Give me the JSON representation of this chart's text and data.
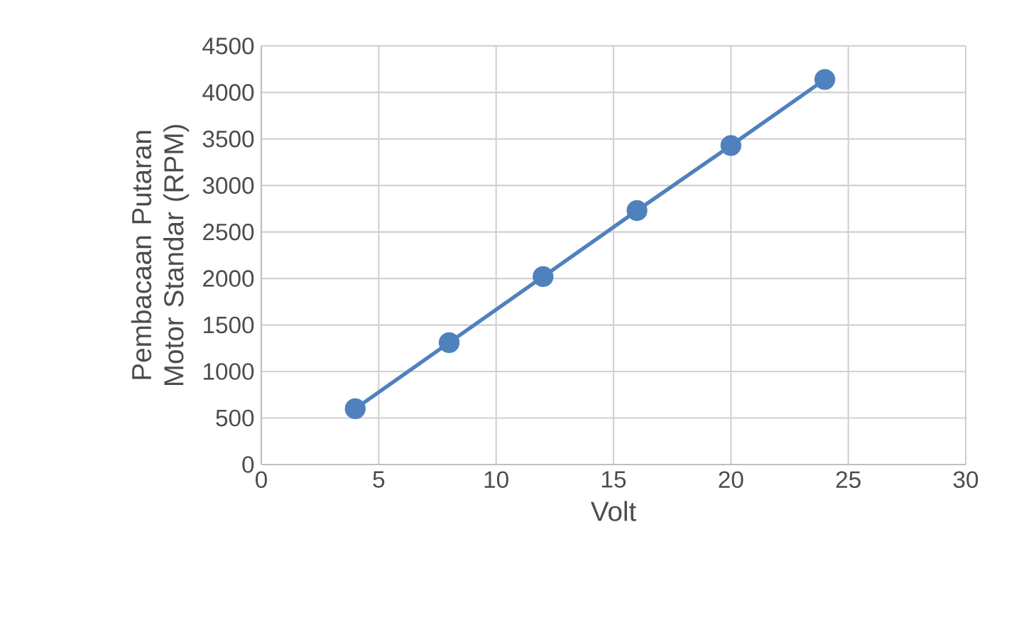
{
  "chart_data": {
    "type": "line",
    "xlabel": "Volt",
    "ylabel": "Pembacaan Putaran Motor Standar (RPM)",
    "x": [
      4,
      8,
      12,
      16,
      20,
      24
    ],
    "series": [
      {
        "color": "#4f81bd",
        "values": [
          600,
          1310,
          2020,
          2730,
          3430,
          4140
        ]
      }
    ],
    "xlim": [
      0,
      30
    ],
    "xticks": [
      0,
      5,
      10,
      15,
      20,
      25,
      30
    ],
    "ylim": [
      0,
      4500
    ],
    "yticks": [
      0,
      500,
      1000,
      1500,
      2000,
      2500,
      3000,
      3500,
      4000,
      4500
    ],
    "grid": true,
    "marker": "circle",
    "line_style": "solid"
  }
}
